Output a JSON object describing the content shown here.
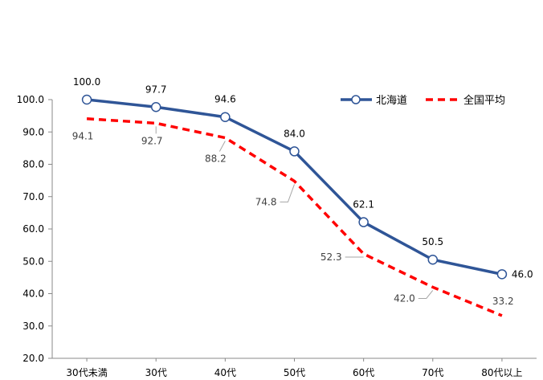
{
  "chart_data": {
    "type": "line",
    "categories": [
      "30代未満",
      "30代",
      "40代",
      "50代",
      "60代",
      "70代",
      "80代以上"
    ],
    "series": [
      {
        "name": "北海道",
        "values": [
          100.0,
          97.7,
          94.6,
          84.0,
          62.1,
          50.5,
          46.0
        ],
        "color": "#2F5597",
        "style": "solid",
        "marker": "circle"
      },
      {
        "name": "全国平均",
        "values": [
          94.1,
          92.7,
          88.2,
          74.8,
          52.3,
          42.0,
          33.2
        ],
        "color": "#FF0000",
        "style": "dashed",
        "marker": "none"
      }
    ],
    "ylim": [
      20.0,
      100.0
    ],
    "yticks": [
      "20.0",
      "30.0",
      "40.0",
      "50.0",
      "60.0",
      "70.0",
      "80.0",
      "90.0",
      "100.0"
    ],
    "grid": false,
    "legend_position": "top-right",
    "data_labels": {
      "北海道": [
        "100.0",
        "97.7",
        "94.6",
        "84.0",
        "62.1",
        "50.5",
        "46.0"
      ],
      "全国平均": [
        "94.1",
        "92.7",
        "88.2",
        "74.8",
        "52.3",
        "42.0",
        "33.2"
      ]
    },
    "title": "",
    "xlabel": "",
    "ylabel": ""
  }
}
